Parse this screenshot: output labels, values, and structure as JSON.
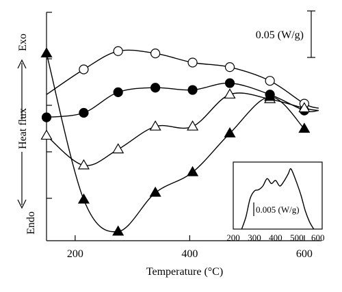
{
  "chart_data": [
    {
      "type": "line",
      "xlabel": "Temperature (°C)",
      "ylabel": "Heat flux",
      "exo_label": "Exo",
      "endo_label": "Endo",
      "scale_bar_label": "0.05 (W/g)",
      "xlim": [
        150,
        630
      ],
      "xticks": [
        200,
        400,
        600
      ],
      "yticks_shown": false,
      "series": [
        {
          "marker": "open-circle",
          "x": [
            150,
            215,
            275,
            340,
            405,
            470,
            540,
            600,
            625
          ],
          "y": [
            0.64,
            0.75,
            0.83,
            0.82,
            0.78,
            0.76,
            0.7,
            0.6,
            0.58
          ],
          "marker_x": [
            215,
            275,
            340,
            405,
            470,
            540,
            600
          ]
        },
        {
          "marker": "filled-circle",
          "x": [
            150,
            215,
            275,
            340,
            405,
            470,
            540,
            600,
            625
          ],
          "y": [
            0.54,
            0.56,
            0.65,
            0.67,
            0.66,
            0.69,
            0.64,
            0.57,
            0.57
          ],
          "marker_x": [
            150,
            215,
            275,
            340,
            405,
            470,
            540,
            600
          ]
        },
        {
          "marker": "open-triangle",
          "x": [
            150,
            215,
            275,
            340,
            405,
            470,
            540,
            600,
            625
          ],
          "y": [
            0.46,
            0.33,
            0.4,
            0.5,
            0.5,
            0.64,
            0.62,
            0.58,
            0.57
          ],
          "marker_x": [
            150,
            215,
            275,
            340,
            405,
            470,
            540,
            600
          ]
        },
        {
          "marker": "filled-triangle",
          "x": [
            150,
            215,
            275,
            340,
            405,
            470,
            540,
            600
          ],
          "y": [
            0.82,
            0.18,
            0.04,
            0.21,
            0.3,
            0.47,
            0.63,
            0.49
          ],
          "marker_x": [
            150,
            215,
            275,
            340,
            405,
            470,
            540,
            600
          ]
        }
      ]
    },
    {
      "type": "line",
      "inset": true,
      "scale_bar_label": "0.005 (W/g)",
      "xticks": [
        200,
        300,
        400,
        500,
        600
      ],
      "xlim": [
        200,
        620
      ],
      "series": [
        {
          "x": [
            240,
            260,
            280,
            300,
            320,
            340,
            360,
            380,
            400,
            420,
            440,
            460,
            470,
            480,
            500,
            520,
            540,
            560,
            580
          ],
          "y": [
            0.0,
            0.2,
            0.5,
            0.62,
            0.64,
            0.7,
            0.82,
            0.74,
            0.79,
            0.7,
            0.78,
            0.9,
            0.98,
            0.93,
            0.75,
            0.55,
            0.3,
            0.12,
            0.0
          ]
        }
      ]
    }
  ]
}
